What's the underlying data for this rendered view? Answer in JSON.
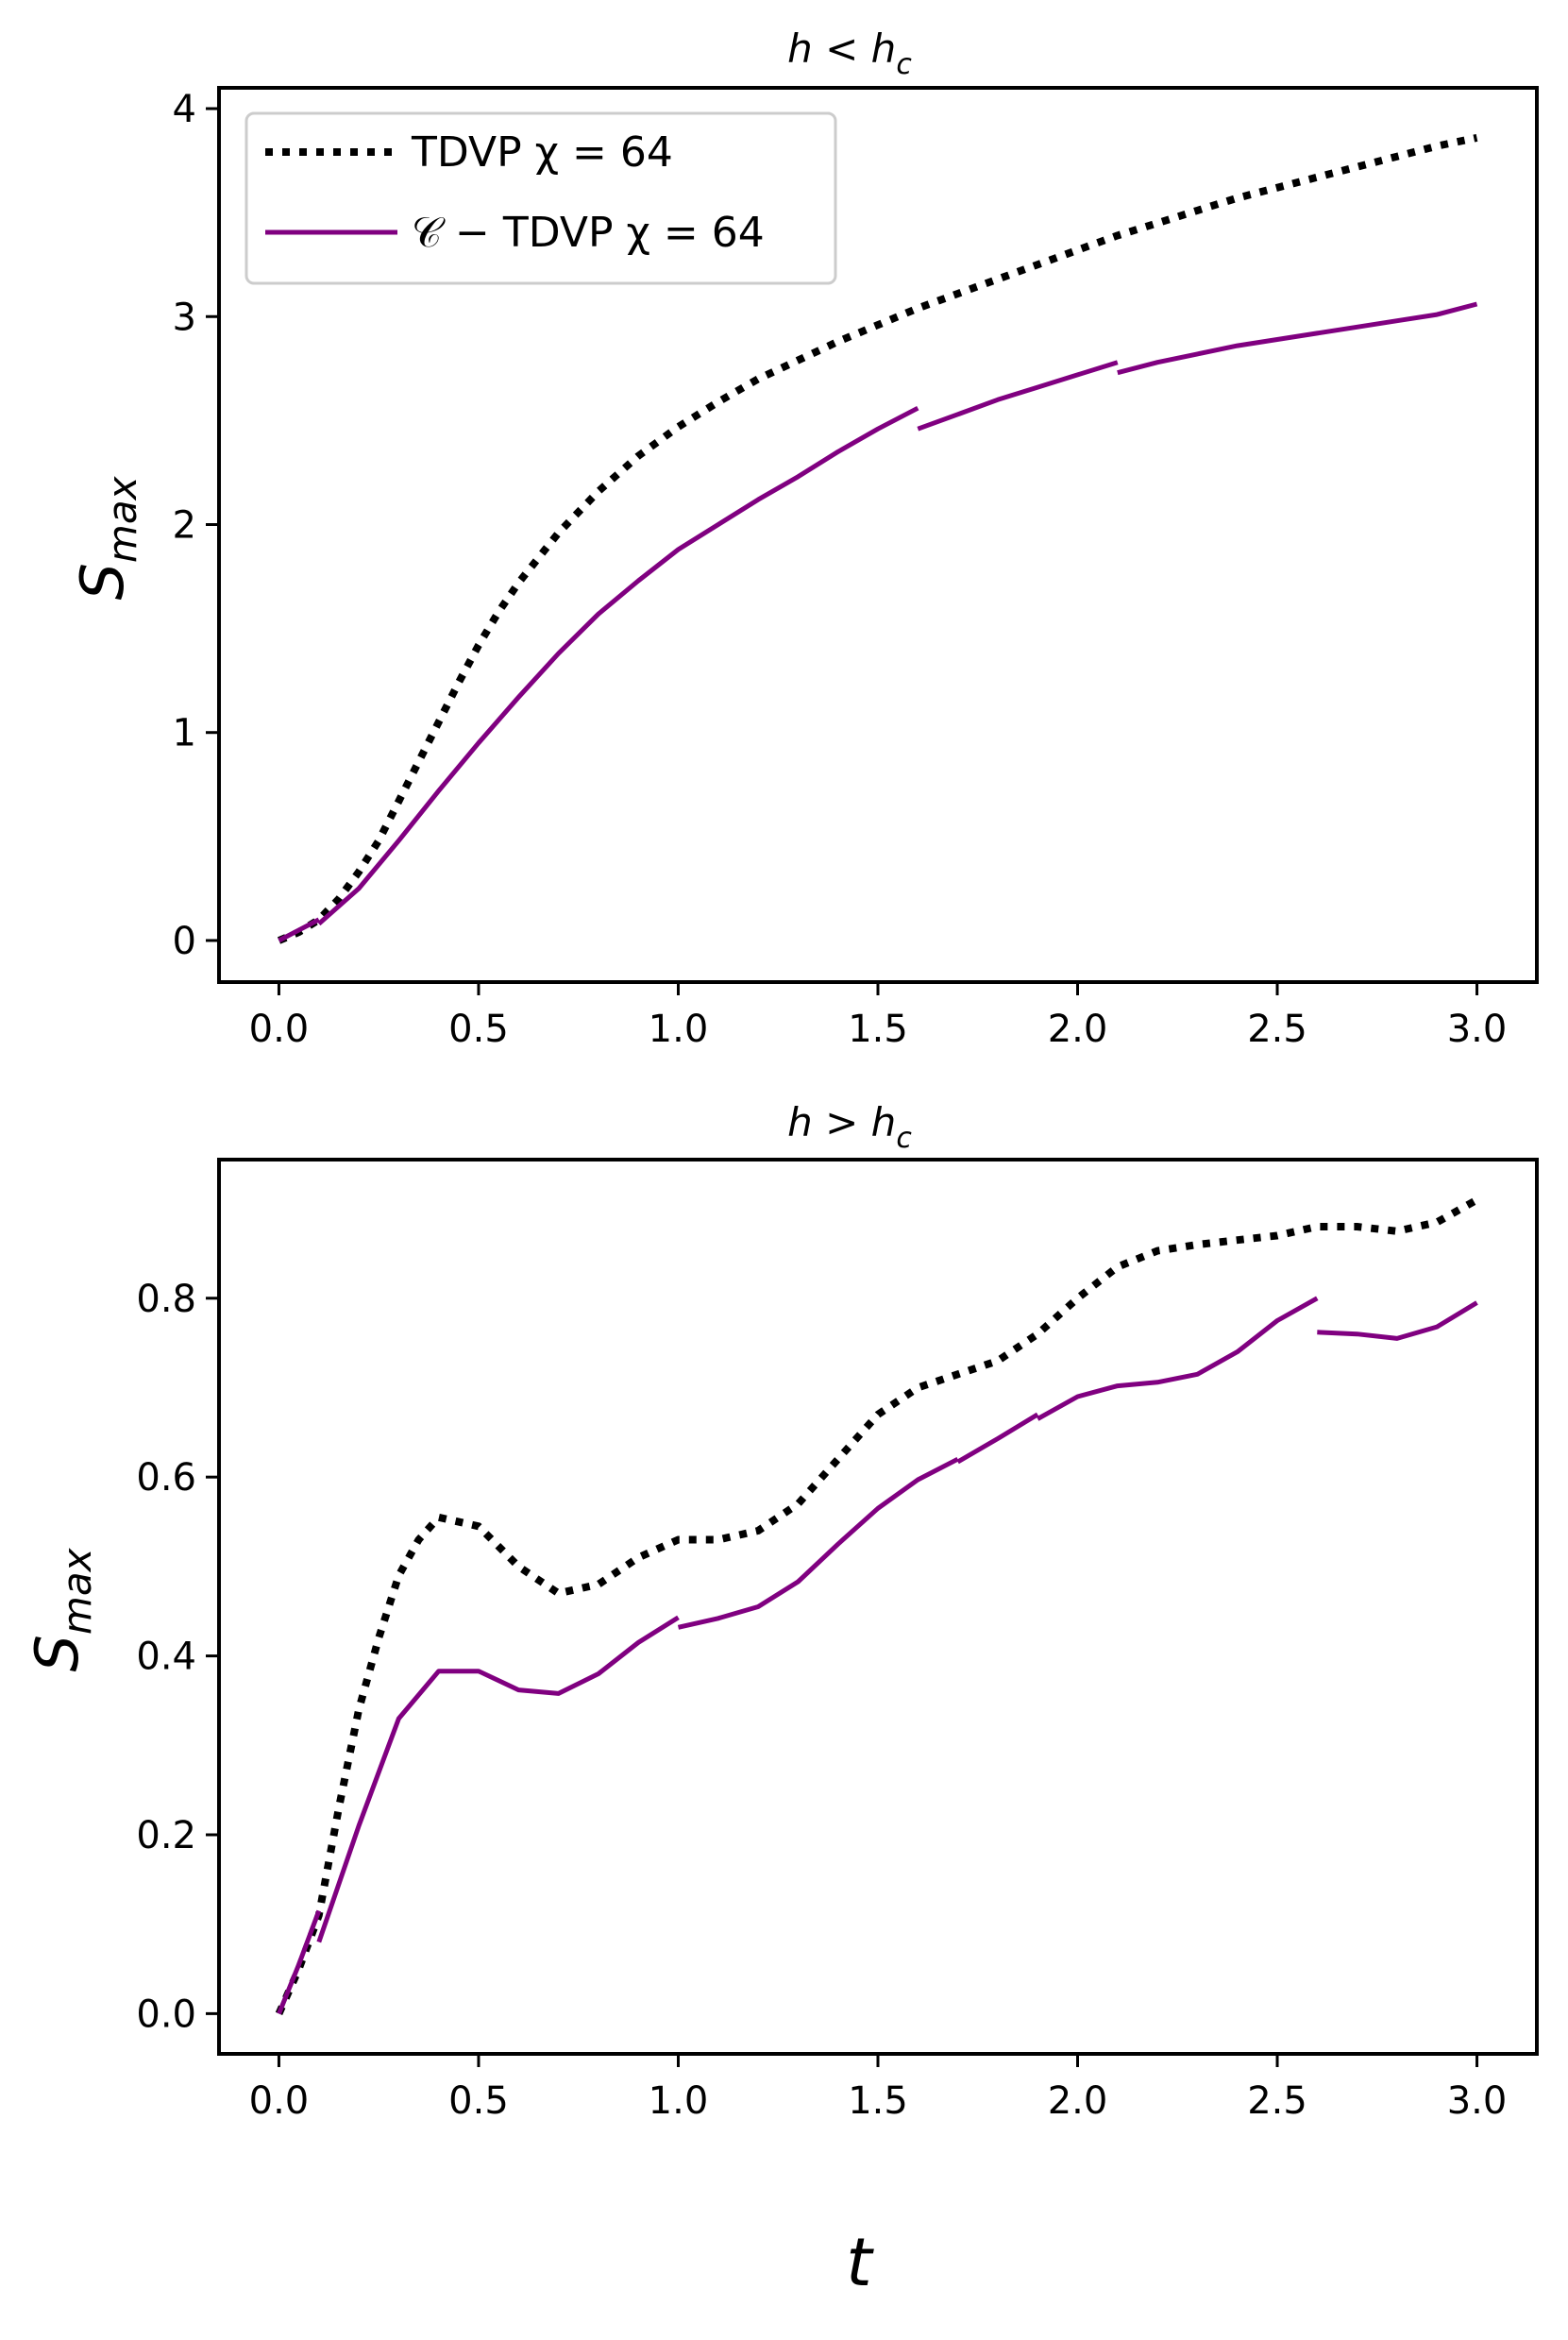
{
  "figure": {
    "xlabel": "t",
    "ylabel": "S",
    "ylabel_sub": "max"
  },
  "chart_data": [
    {
      "type": "line",
      "title": "h < h",
      "title_sub": "c",
      "xlim": [
        -0.15,
        3.15
      ],
      "ylim": [
        -0.2,
        4.1
      ],
      "xticks": [
        0.0,
        0.5,
        1.0,
        1.5,
        2.0,
        2.5,
        3.0
      ],
      "xtick_labels": [
        "0.0",
        "0.5",
        "1.0",
        "1.5",
        "2.0",
        "2.5",
        "3.0"
      ],
      "yticks": [
        0,
        1,
        2,
        3,
        4
      ],
      "ytick_labels": [
        "0",
        "1",
        "2",
        "3",
        "4"
      ],
      "legend": {
        "position": "top-left",
        "entries": [
          {
            "label": "TDVP χ = 64",
            "style": "dotted",
            "color": "#000000"
          },
          {
            "label": "𝒞 − TDVP χ = 64",
            "style": "solid",
            "color": "#800080"
          }
        ]
      },
      "series": [
        {
          "name": "TDVP χ = 64",
          "style": "dotted",
          "color": "#000000",
          "segments": [
            [
              [
                0.0,
                0.0
              ],
              [
                0.05,
                0.04
              ],
              [
                0.1,
                0.1
              ],
              [
                0.15,
                0.2
              ],
              [
                0.2,
                0.33
              ],
              [
                0.25,
                0.48
              ],
              [
                0.3,
                0.67
              ],
              [
                0.35,
                0.86
              ],
              [
                0.4,
                1.05
              ],
              [
                0.45,
                1.24
              ],
              [
                0.5,
                1.42
              ],
              [
                0.55,
                1.58
              ],
              [
                0.6,
                1.72
              ],
              [
                0.7,
                1.96
              ],
              [
                0.8,
                2.16
              ],
              [
                0.9,
                2.33
              ],
              [
                1.0,
                2.47
              ],
              [
                1.1,
                2.59
              ],
              [
                1.2,
                2.7
              ],
              [
                1.3,
                2.79
              ],
              [
                1.4,
                2.88
              ],
              [
                1.5,
                2.96
              ],
              [
                1.6,
                3.04
              ],
              [
                1.7,
                3.11
              ],
              [
                1.8,
                3.18
              ],
              [
                1.9,
                3.25
              ],
              [
                2.0,
                3.32
              ],
              [
                2.1,
                3.39
              ],
              [
                2.2,
                3.45
              ],
              [
                2.3,
                3.51
              ],
              [
                2.4,
                3.57
              ],
              [
                2.5,
                3.62
              ],
              [
                2.6,
                3.67
              ],
              [
                2.7,
                3.72
              ],
              [
                2.8,
                3.77
              ],
              [
                2.9,
                3.82
              ],
              [
                3.0,
                3.86
              ]
            ]
          ]
        },
        {
          "name": "𝒞 − TDVP χ = 64",
          "style": "solid",
          "color": "#800080",
          "segments": [
            [
              [
                0.0,
                0.0
              ],
              [
                0.05,
                0.05
              ],
              [
                0.1,
                0.1
              ]
            ],
            [
              [
                0.1,
                0.08
              ],
              [
                0.2,
                0.25
              ],
              [
                0.3,
                0.48
              ],
              [
                0.4,
                0.72
              ],
              [
                0.5,
                0.95
              ],
              [
                0.6,
                1.17
              ],
              [
                0.7,
                1.38
              ],
              [
                0.8,
                1.57
              ],
              [
                0.9,
                1.73
              ],
              [
                1.0,
                1.88
              ],
              [
                1.1,
                2.0
              ],
              [
                1.2,
                2.12
              ],
              [
                1.3,
                2.23
              ],
              [
                1.4,
                2.35
              ],
              [
                1.5,
                2.46
              ],
              [
                1.6,
                2.56
              ]
            ],
            [
              [
                1.6,
                2.46
              ],
              [
                1.7,
                2.53
              ],
              [
                1.8,
                2.6
              ],
              [
                1.9,
                2.66
              ],
              [
                2.0,
                2.72
              ],
              [
                2.1,
                2.78
              ]
            ],
            [
              [
                2.1,
                2.73
              ],
              [
                2.2,
                2.78
              ],
              [
                2.3,
                2.82
              ],
              [
                2.4,
                2.86
              ],
              [
                2.5,
                2.89
              ],
              [
                2.6,
                2.92
              ],
              [
                2.7,
                2.95
              ],
              [
                2.8,
                2.98
              ],
              [
                2.9,
                3.01
              ],
              [
                3.0,
                3.06
              ]
            ]
          ]
        }
      ]
    },
    {
      "type": "line",
      "title": "h > h",
      "title_sub": "c",
      "xlim": [
        -0.15,
        3.15
      ],
      "ylim": [
        -0.045,
        0.955
      ],
      "xticks": [
        0.0,
        0.5,
        1.0,
        1.5,
        2.0,
        2.5,
        3.0
      ],
      "xtick_labels": [
        "0.0",
        "0.5",
        "1.0",
        "1.5",
        "2.0",
        "2.5",
        "3.0"
      ],
      "yticks": [
        0.0,
        0.2,
        0.4,
        0.6,
        0.8
      ],
      "ytick_labels": [
        "0.0",
        "0.2",
        "0.4",
        "0.6",
        "0.8"
      ],
      "series": [
        {
          "name": "TDVP χ = 64",
          "style": "dotted",
          "color": "#000000",
          "segments": [
            [
              [
                0.0,
                0.0
              ],
              [
                0.05,
                0.05
              ],
              [
                0.1,
                0.11
              ],
              [
                0.15,
                0.23
              ],
              [
                0.2,
                0.34
              ],
              [
                0.25,
                0.42
              ],
              [
                0.3,
                0.49
              ],
              [
                0.35,
                0.53
              ],
              [
                0.4,
                0.555
              ],
              [
                0.5,
                0.545
              ],
              [
                0.6,
                0.5
              ],
              [
                0.7,
                0.47
              ],
              [
                0.8,
                0.48
              ],
              [
                0.9,
                0.51
              ],
              [
                1.0,
                0.53
              ],
              [
                1.1,
                0.53
              ],
              [
                1.2,
                0.54
              ],
              [
                1.3,
                0.57
              ],
              [
                1.4,
                0.62
              ],
              [
                1.5,
                0.67
              ],
              [
                1.6,
                0.7
              ],
              [
                1.7,
                0.715
              ],
              [
                1.8,
                0.73
              ],
              [
                1.9,
                0.76
              ],
              [
                2.0,
                0.8
              ],
              [
                2.1,
                0.835
              ],
              [
                2.2,
                0.853
              ],
              [
                2.3,
                0.86
              ],
              [
                2.4,
                0.865
              ],
              [
                2.5,
                0.87
              ],
              [
                2.6,
                0.88
              ],
              [
                2.7,
                0.88
              ],
              [
                2.8,
                0.875
              ],
              [
                2.9,
                0.885
              ],
              [
                3.0,
                0.91
              ]
            ]
          ]
        },
        {
          "name": "𝒞 − TDVP χ = 64",
          "style": "solid",
          "color": "#800080",
          "segments": [
            [
              [
                0.0,
                0.0
              ],
              [
                0.05,
                0.055
              ],
              [
                0.1,
                0.115
              ]
            ],
            [
              [
                0.1,
                0.08
              ],
              [
                0.2,
                0.21
              ],
              [
                0.3,
                0.33
              ],
              [
                0.4,
                0.383
              ],
              [
                0.5,
                0.383
              ],
              [
                0.6,
                0.362
              ],
              [
                0.7,
                0.358
              ],
              [
                0.8,
                0.38
              ],
              [
                0.9,
                0.415
              ],
              [
                1.0,
                0.443
              ]
            ],
            [
              [
                1.0,
                0.432
              ],
              [
                1.1,
                0.442
              ],
              [
                1.2,
                0.455
              ],
              [
                1.3,
                0.483
              ],
              [
                1.4,
                0.525
              ],
              [
                1.5,
                0.565
              ],
              [
                1.6,
                0.597
              ],
              [
                1.7,
                0.62
              ]
            ],
            [
              [
                1.7,
                0.617
              ],
              [
                1.8,
                0.643
              ],
              [
                1.9,
                0.67
              ]
            ],
            [
              [
                1.9,
                0.665
              ],
              [
                2.0,
                0.69
              ],
              [
                2.1,
                0.702
              ],
              [
                2.2,
                0.706
              ],
              [
                2.3,
                0.715
              ],
              [
                2.4,
                0.74
              ],
              [
                2.5,
                0.775
              ],
              [
                2.6,
                0.8
              ]
            ],
            [
              [
                2.6,
                0.762
              ],
              [
                2.7,
                0.76
              ],
              [
                2.8,
                0.755
              ],
              [
                2.9,
                0.768
              ],
              [
                3.0,
                0.795
              ]
            ]
          ]
        }
      ]
    }
  ]
}
